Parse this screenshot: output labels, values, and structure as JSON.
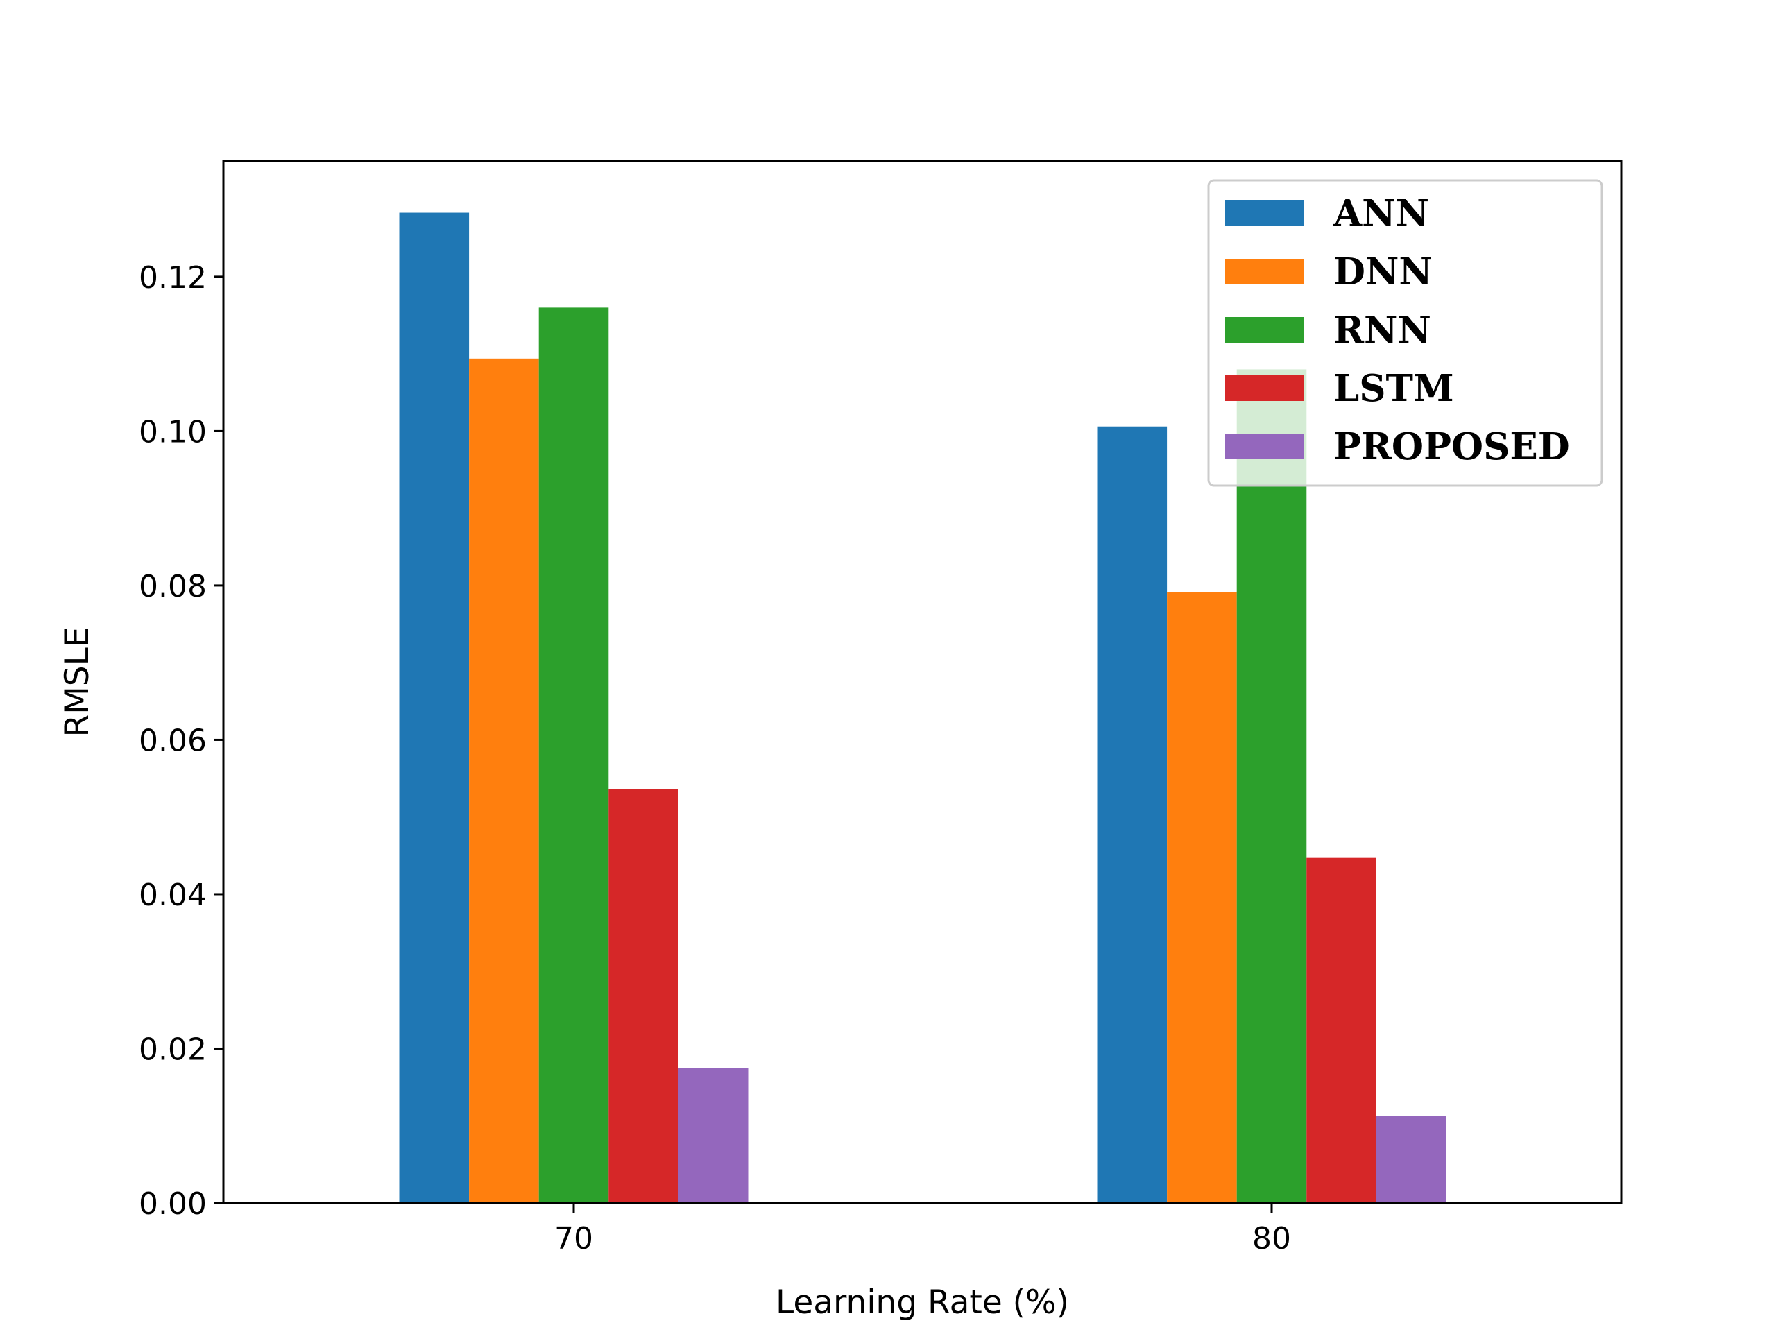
{
  "chart_data": {
    "type": "bar",
    "title": "",
    "xlabel": "Learning Rate (%)",
    "ylabel": "RMSLE",
    "categories": [
      "70",
      "80"
    ],
    "ylim": [
      0,
      0.135
    ],
    "yticks": [
      0.0,
      0.02,
      0.04,
      0.06,
      0.08,
      0.1,
      0.12
    ],
    "ytick_labels": [
      "0.00",
      "0.02",
      "0.04",
      "0.06",
      "0.08",
      "0.10",
      "0.12"
    ],
    "grid": false,
    "legend_position": "top-right",
    "series": [
      {
        "name": "ANN",
        "color": "#1f77b4",
        "values": [
          0.1283,
          0.1006
        ]
      },
      {
        "name": "DNN",
        "color": "#ff7f0e",
        "values": [
          0.1094,
          0.0791
        ]
      },
      {
        "name": "RNN",
        "color": "#2ca02c",
        "values": [
          0.116,
          0.108
        ]
      },
      {
        "name": "LSTM",
        "color": "#d62728",
        "values": [
          0.0536,
          0.0447
        ]
      },
      {
        "name": "PROPOSED",
        "color": "#9467bd",
        "values": [
          0.0175,
          0.0113
        ]
      }
    ]
  }
}
